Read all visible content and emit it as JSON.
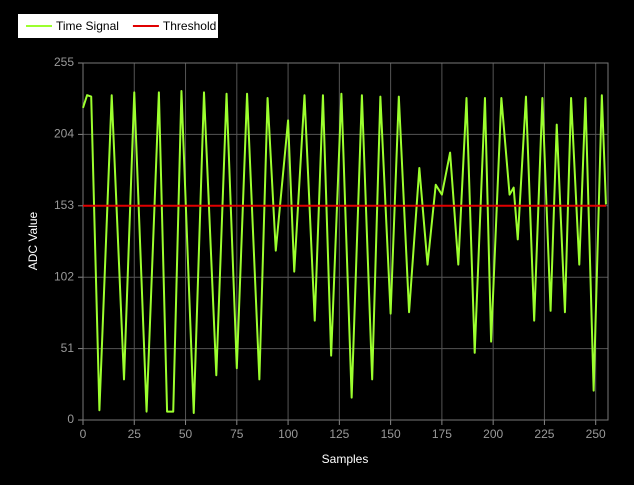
{
  "chart_data": {
    "type": "line",
    "xlabel": "Samples",
    "ylabel": "ADC Value",
    "xlim": [
      0,
      256
    ],
    "xticks": [
      0,
      25,
      50,
      75,
      100,
      125,
      150,
      175,
      200,
      225,
      250
    ],
    "ylim": [
      0,
      255
    ],
    "yticks": [
      0,
      51,
      102,
      153,
      204,
      255
    ],
    "grid": true,
    "legend": "top-left",
    "series": [
      {
        "name": "Time Signal",
        "color": "#9cff2e",
        "x": [
          0,
          2,
          4,
          8,
          14,
          20,
          25,
          31,
          37,
          41,
          44,
          48,
          54,
          59,
          65,
          70,
          75,
          80,
          86,
          90,
          94,
          100,
          103,
          108,
          113,
          117,
          121,
          126,
          131,
          136,
          141,
          145,
          150,
          154,
          159,
          164,
          168,
          172,
          175,
          179,
          183,
          187,
          191,
          196,
          199,
          204,
          208,
          210,
          212,
          216,
          220,
          224,
          228,
          231,
          235,
          238,
          242,
          245,
          249,
          253,
          255
        ],
        "values": [
          223,
          232,
          231,
          7,
          232,
          29,
          234,
          6,
          234,
          6,
          6,
          235,
          5,
          234,
          32,
          233,
          37,
          233,
          29,
          230,
          121,
          214,
          106,
          232,
          71,
          232,
          46,
          233,
          16,
          232,
          29,
          231,
          76,
          231,
          77,
          180,
          111,
          168,
          161,
          191,
          111,
          230,
          48,
          230,
          56,
          230,
          161,
          166,
          129,
          231,
          71,
          230,
          78,
          211,
          77,
          230,
          111,
          230,
          21,
          232,
          154
        ]
      },
      {
        "name": "Threshold",
        "color": "#e00000",
        "x": [
          0,
          255
        ],
        "values": [
          153,
          153
        ]
      }
    ]
  }
}
